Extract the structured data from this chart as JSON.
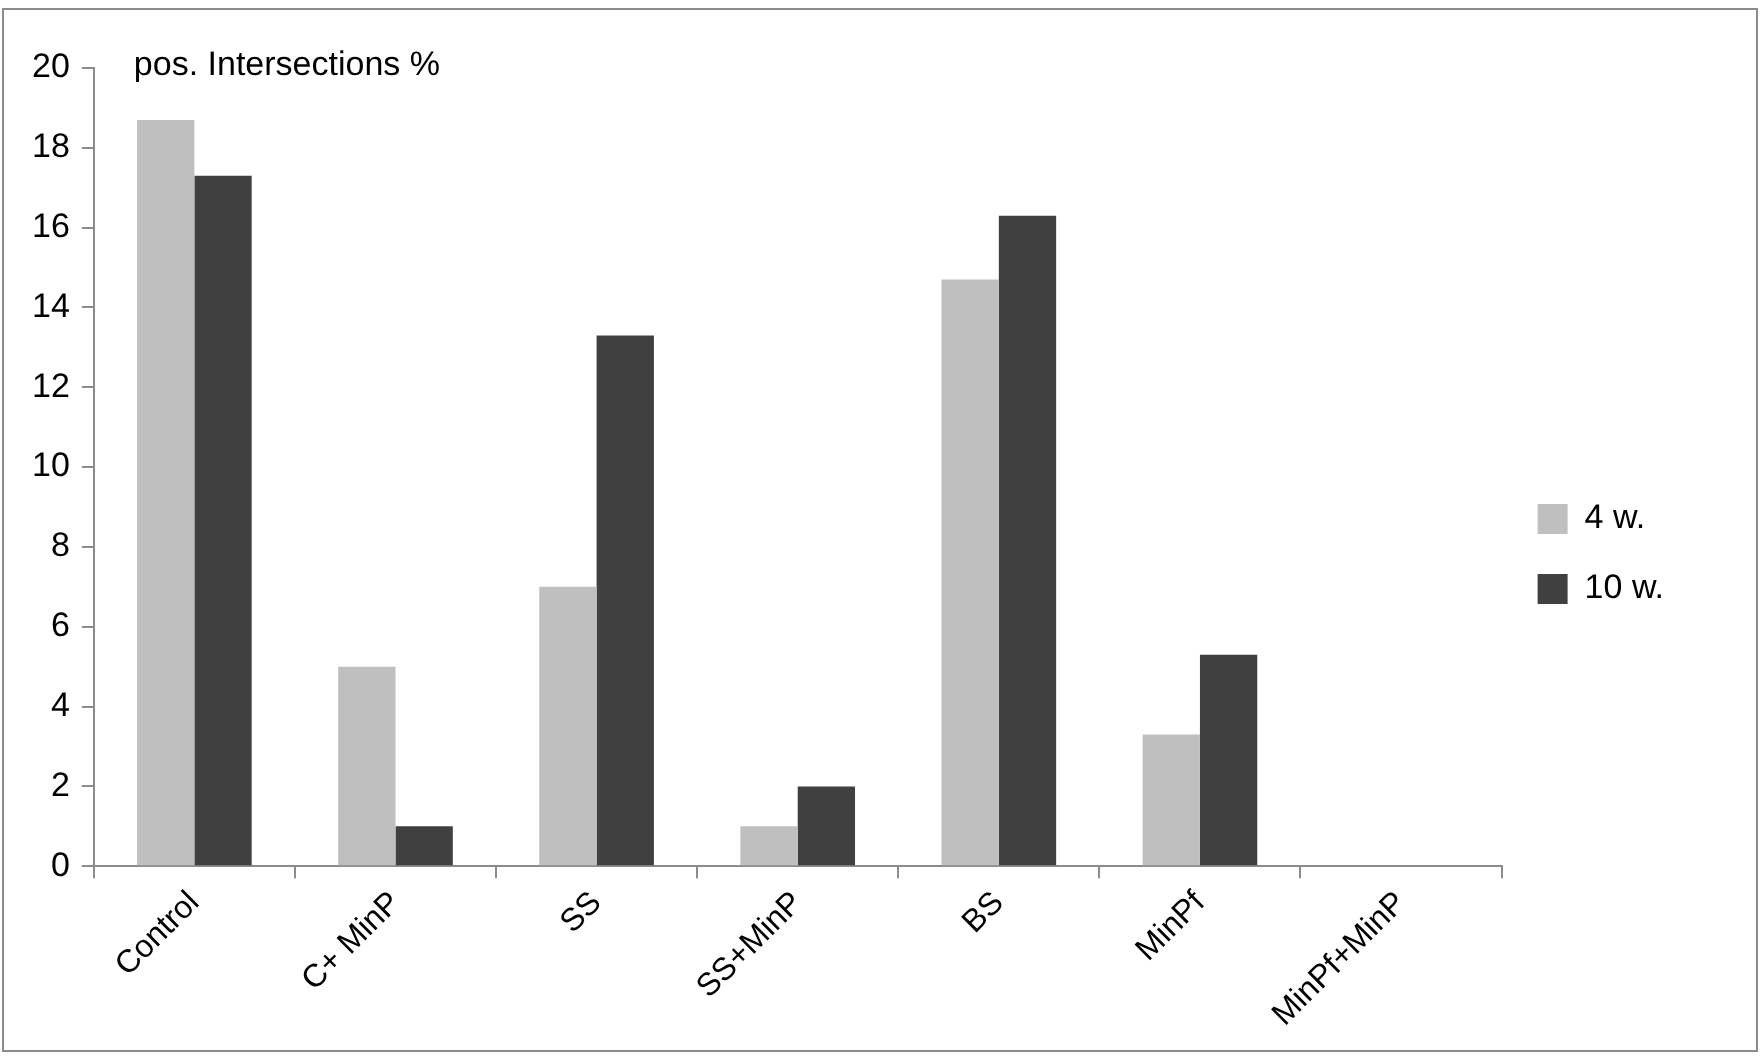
{
  "chart_data": {
    "type": "bar",
    "ylabel": "pos. Intersections %",
    "categories": [
      "Control",
      "C+ MinP",
      "SS",
      "SS+MinP",
      "BS",
      "MinPf",
      "MinPf+MinP"
    ],
    "series": [
      {
        "name": "4 w.",
        "color": "#bfbfbf",
        "values": [
          18.7,
          5,
          7,
          1,
          14.7,
          3.3,
          0
        ]
      },
      {
        "name": "10 w.",
        "color": "#404040",
        "values": [
          17.3,
          1,
          13.3,
          2,
          16.3,
          5.3,
          0
        ]
      }
    ],
    "ylim": [
      0,
      20
    ],
    "yticks": [
      0,
      2,
      4,
      6,
      8,
      10,
      12,
      14,
      16,
      18,
      20
    ],
    "grid": false,
    "legend": "right"
  }
}
